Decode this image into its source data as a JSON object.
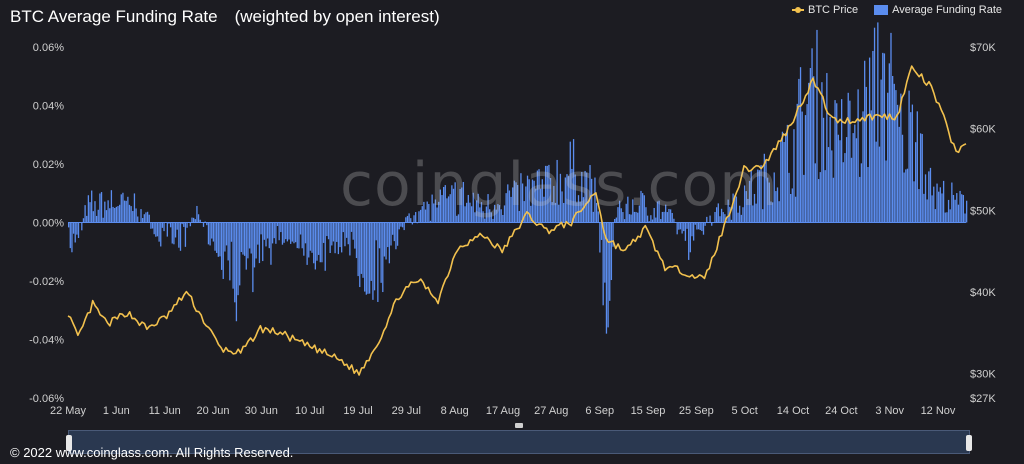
{
  "title": "BTC Average Funding Rate　(weighted by open interest)",
  "legend": {
    "price_label": "BTC Price",
    "rate_label": "Average Funding Rate"
  },
  "colors": {
    "price": "#f2c14e",
    "rate": "#5b8def",
    "background": "#1c1c22"
  },
  "watermark": "coinglass.com",
  "footer": "© 2022 www.coinglass.com. All Rights Reserved.",
  "chart_data": {
    "type": "bar",
    "x_start": "2021-05-22",
    "x_end": "2021-11-20",
    "x_tick_labels": [
      "22 May",
      "1 Jun",
      "11 Jun",
      "20 Jun",
      "30 Jun",
      "10 Jul",
      "19 Jul",
      "29 Jul",
      "8 Aug",
      "17 Aug",
      "27 Aug",
      "6 Sep",
      "15 Sep",
      "25 Sep",
      "5 Oct",
      "14 Oct",
      "24 Oct",
      "3 Nov",
      "12 Nov"
    ],
    "y_left_ticks": [
      "0.06%",
      "0.04%",
      "0.02%",
      "0.00%",
      "-0.02%",
      "-0.04%",
      "-0.06%"
    ],
    "y_left_range": [
      -0.06,
      0.06
    ],
    "y_right_ticks": [
      "$70K",
      "$60K",
      "$50K",
      "$40K",
      "$30K",
      "$27K"
    ],
    "y_right_range": [
      27000,
      70000
    ],
    "grid": false,
    "legend_position": "top-right",
    "series": [
      {
        "name": "Average Funding Rate",
        "kind": "bar",
        "axis": "left",
        "unit": "%",
        "points": [
          [
            "2021-05-22",
            -0.012
          ],
          [
            "2021-05-26",
            0.006
          ],
          [
            "2021-05-31",
            0.008
          ],
          [
            "2021-06-05",
            0.006
          ],
          [
            "2021-06-09",
            -0.004
          ],
          [
            "2021-06-13",
            -0.01
          ],
          [
            "2021-06-17",
            0.004
          ],
          [
            "2021-06-21",
            -0.01
          ],
          [
            "2021-06-25",
            -0.022
          ],
          [
            "2021-06-29",
            -0.015
          ],
          [
            "2021-07-03",
            -0.006
          ],
          [
            "2021-07-07",
            -0.008
          ],
          [
            "2021-07-12",
            -0.012
          ],
          [
            "2021-07-17",
            -0.006
          ],
          [
            "2021-07-22",
            -0.02
          ],
          [
            "2021-07-26",
            -0.014
          ],
          [
            "2021-07-30",
            0.004
          ],
          [
            "2021-08-04",
            0.007
          ],
          [
            "2021-08-09",
            0.01
          ],
          [
            "2021-08-14",
            0.006
          ],
          [
            "2021-08-18",
            0.009
          ],
          [
            "2021-08-23",
            0.012
          ],
          [
            "2021-08-28",
            0.015
          ],
          [
            "2021-09-02",
            0.02
          ],
          [
            "2021-09-06",
            0.01
          ],
          [
            "2021-09-08",
            -0.038
          ],
          [
            "2021-09-10",
            0.005
          ],
          [
            "2021-09-15",
            0.007
          ],
          [
            "2021-09-20",
            0.004
          ],
          [
            "2021-09-25",
            -0.008
          ],
          [
            "2021-09-30",
            0.004
          ],
          [
            "2021-10-05",
            0.009
          ],
          [
            "2021-10-10",
            0.016
          ],
          [
            "2021-10-15",
            0.026
          ],
          [
            "2021-10-20",
            0.05
          ],
          [
            "2021-10-25",
            0.03
          ],
          [
            "2021-10-30",
            0.038
          ],
          [
            "2021-11-03",
            0.058
          ],
          [
            "2021-11-07",
            0.03
          ],
          [
            "2021-11-10",
            0.038
          ],
          [
            "2021-11-13",
            0.012
          ],
          [
            "2021-11-17",
            0.008
          ],
          [
            "2021-11-20",
            0.006
          ]
        ]
      },
      {
        "name": "BTC Price",
        "kind": "line",
        "axis": "right",
        "unit": "USD",
        "points": [
          [
            "2021-05-22",
            37500
          ],
          [
            "2021-05-24",
            34300
          ],
          [
            "2021-05-27",
            38500
          ],
          [
            "2021-05-30",
            36000
          ],
          [
            "2021-06-03",
            37500
          ],
          [
            "2021-06-07",
            35500
          ],
          [
            "2021-06-11",
            37000
          ],
          [
            "2021-06-15",
            40000
          ],
          [
            "2021-06-19",
            36000
          ],
          [
            "2021-06-22",
            33000
          ],
          [
            "2021-06-26",
            32500
          ],
          [
            "2021-06-30",
            35500
          ],
          [
            "2021-07-04",
            35000
          ],
          [
            "2021-07-08",
            33800
          ],
          [
            "2021-07-12",
            32800
          ],
          [
            "2021-07-16",
            31700
          ],
          [
            "2021-07-20",
            30000
          ],
          [
            "2021-07-24",
            34000
          ],
          [
            "2021-07-28",
            39500
          ],
          [
            "2021-08-01",
            41500
          ],
          [
            "2021-08-05",
            39000
          ],
          [
            "2021-08-09",
            45500
          ],
          [
            "2021-08-14",
            47000
          ],
          [
            "2021-08-18",
            45000
          ],
          [
            "2021-08-23",
            49500
          ],
          [
            "2021-08-27",
            47500
          ],
          [
            "2021-09-01",
            48500
          ],
          [
            "2021-09-06",
            52300
          ],
          [
            "2021-09-08",
            46500
          ],
          [
            "2021-09-12",
            45000
          ],
          [
            "2021-09-16",
            47800
          ],
          [
            "2021-09-20",
            43000
          ],
          [
            "2021-09-24",
            42500
          ],
          [
            "2021-09-28",
            41500
          ],
          [
            "2021-10-02",
            48000
          ],
          [
            "2021-10-06",
            55000
          ],
          [
            "2021-10-10",
            55500
          ],
          [
            "2021-10-15",
            60000
          ],
          [
            "2021-10-20",
            66000
          ],
          [
            "2021-10-24",
            61000
          ],
          [
            "2021-10-28",
            61000
          ],
          [
            "2021-11-01",
            61500
          ],
          [
            "2021-11-06",
            61500
          ],
          [
            "2021-11-09",
            67500
          ],
          [
            "2021-11-13",
            65000
          ],
          [
            "2021-11-16",
            60500
          ],
          [
            "2021-11-18",
            57000
          ],
          [
            "2021-11-20",
            58500
          ]
        ]
      }
    ]
  }
}
